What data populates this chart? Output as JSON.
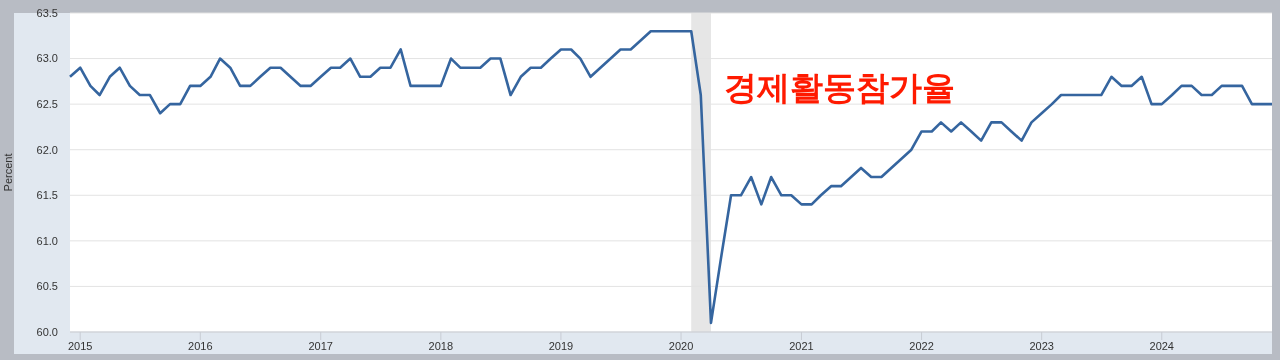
{
  "chart_data": {
    "type": "line",
    "ylabel": "Percent",
    "annotations": [
      "경제활동참가율"
    ],
    "x": [
      "2014-12",
      "2015-01",
      "2015-02",
      "2015-03",
      "2015-04",
      "2015-05",
      "2015-06",
      "2015-07",
      "2015-08",
      "2015-09",
      "2015-10",
      "2015-11",
      "2015-12",
      "2016-01",
      "2016-02",
      "2016-03",
      "2016-04",
      "2016-05",
      "2016-06",
      "2016-07",
      "2016-08",
      "2016-09",
      "2016-10",
      "2016-11",
      "2016-12",
      "2017-01",
      "2017-02",
      "2017-03",
      "2017-04",
      "2017-05",
      "2017-06",
      "2017-07",
      "2017-08",
      "2017-09",
      "2017-10",
      "2017-11",
      "2017-12",
      "2018-01",
      "2018-02",
      "2018-03",
      "2018-04",
      "2018-05",
      "2018-06",
      "2018-07",
      "2018-08",
      "2018-09",
      "2018-10",
      "2018-11",
      "2018-12",
      "2019-01",
      "2019-02",
      "2019-03",
      "2019-04",
      "2019-05",
      "2019-06",
      "2019-07",
      "2019-08",
      "2019-09",
      "2019-10",
      "2019-11",
      "2019-12",
      "2020-01",
      "2020-02",
      "2020-03",
      "2020-04",
      "2020-05",
      "2020-06",
      "2020-07",
      "2020-08",
      "2020-09",
      "2020-10",
      "2020-11",
      "2020-12",
      "2021-01",
      "2021-02",
      "2021-03",
      "2021-04",
      "2021-05",
      "2021-06",
      "2021-07",
      "2021-08",
      "2021-09",
      "2021-10",
      "2021-11",
      "2021-12",
      "2022-01",
      "2022-02",
      "2022-03",
      "2022-04",
      "2022-05",
      "2022-06",
      "2022-07",
      "2022-08",
      "2022-09",
      "2022-10",
      "2022-11",
      "2022-12",
      "2023-01",
      "2023-02",
      "2023-03",
      "2023-04",
      "2023-05",
      "2023-06",
      "2023-07",
      "2023-08",
      "2023-09",
      "2023-10",
      "2023-11",
      "2023-12",
      "2024-01",
      "2024-02",
      "2024-03",
      "2024-04",
      "2024-05",
      "2024-06",
      "2024-07",
      "2024-08",
      "2024-09",
      "2024-10",
      "2024-11",
      "2024-12"
    ],
    "series": [
      {
        "color": "#35659f",
        "values": [
          62.8,
          62.9,
          62.7,
          62.6,
          62.8,
          62.9,
          62.7,
          62.6,
          62.6,
          62.4,
          62.5,
          62.5,
          62.7,
          62.7,
          62.8,
          63.0,
          62.9,
          62.7,
          62.7,
          62.8,
          62.9,
          62.9,
          62.8,
          62.7,
          62.7,
          62.8,
          62.9,
          62.9,
          63.0,
          62.8,
          62.8,
          62.9,
          62.9,
          63.1,
          62.7,
          62.7,
          62.7,
          62.7,
          63.0,
          62.9,
          62.9,
          62.9,
          63.0,
          63.0,
          62.6,
          62.8,
          62.9,
          62.9,
          63.0,
          63.1,
          63.1,
          63.0,
          62.8,
          62.9,
          63.0,
          63.1,
          63.1,
          63.2,
          63.3,
          63.3,
          63.3,
          63.3,
          63.3,
          62.6,
          60.1,
          60.8,
          61.5,
          61.5,
          61.7,
          61.4,
          61.7,
          61.5,
          61.5,
          61.4,
          61.4,
          61.5,
          61.6,
          61.6,
          61.7,
          61.8,
          61.7,
          61.7,
          61.8,
          61.9,
          62.0,
          62.2,
          62.2,
          62.3,
          62.2,
          62.3,
          62.2,
          62.1,
          62.3,
          62.3,
          62.2,
          62.1,
          62.3,
          62.4,
          62.5,
          62.6,
          62.6,
          62.6,
          62.6,
          62.6,
          62.8,
          62.7,
          62.7,
          62.8,
          62.5,
          62.5,
          62.6,
          62.7,
          62.7,
          62.6,
          62.6,
          62.7,
          62.7,
          62.7,
          62.5,
          62.5,
          62.5
        ]
      }
    ],
    "xlim": [
      "2014-12",
      "2024-12"
    ],
    "xticks": [
      {
        "value": "2015-01",
        "label": "2015"
      },
      {
        "value": "2016-01",
        "label": "2016"
      },
      {
        "value": "2017-01",
        "label": "2017"
      },
      {
        "value": "2018-01",
        "label": "2018"
      },
      {
        "value": "2019-01",
        "label": "2019"
      },
      {
        "value": "2020-01",
        "label": "2020"
      },
      {
        "value": "2021-01",
        "label": "2021"
      },
      {
        "value": "2022-01",
        "label": "2022"
      },
      {
        "value": "2023-01",
        "label": "2023"
      },
      {
        "value": "2024-01",
        "label": "2024"
      }
    ],
    "ylim": [
      60,
      63.5
    ],
    "yticks": [
      {
        "value": 60,
        "label": "60.0"
      },
      {
        "value": 60.5,
        "label": "60.5"
      },
      {
        "value": 61,
        "label": "61.0"
      },
      {
        "value": 61.5,
        "label": "61.5"
      },
      {
        "value": 62,
        "label": "62.0"
      },
      {
        "value": 62.5,
        "label": "62.5"
      },
      {
        "value": 63,
        "label": "63.0"
      },
      {
        "value": 63.5,
        "label": "63.5"
      }
    ],
    "bands": [
      {
        "axis": "x",
        "from": "2020-02",
        "to": "2020-04",
        "color": "#e6e6e6"
      }
    ],
    "grid": "y",
    "marker": "none",
    "line_style": "solid"
  }
}
